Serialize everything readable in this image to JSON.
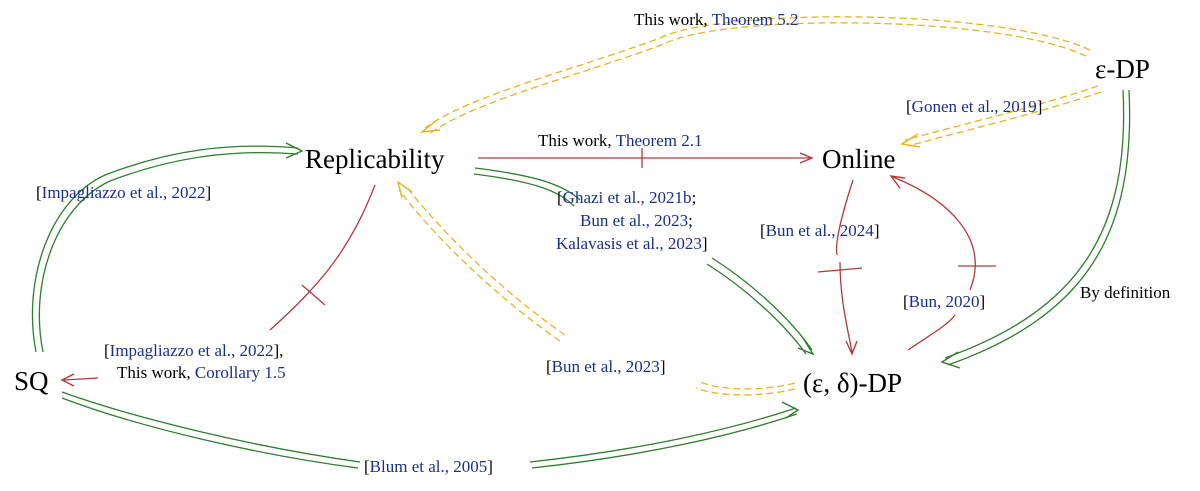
{
  "nodes": {
    "replicability": "Replicability",
    "online": "Online",
    "eps_dp": "ε-DP",
    "sq": "SQ",
    "eps_delta_dp": "(ε, δ)-DP"
  },
  "labels": {
    "theorem52": {
      "plain": "This work, ",
      "cite": "Theorem 5.2"
    },
    "gonen": {
      "open": "[",
      "cite": "Gonen et al., 2019",
      "close": "]"
    },
    "theorem21": {
      "plain": "This work, ",
      "cite": "Theorem 2.1"
    },
    "impagliazzo_top": {
      "open": "[",
      "cite": "Impagliazzo et al., 2022",
      "close": "]"
    },
    "ghazi_line1": {
      "open": "[",
      "cite": "Ghazi et al., 2021b",
      "close": ";"
    },
    "ghazi_line2": {
      "cite": "Bun et al., 2023",
      "close": ";"
    },
    "ghazi_line3": {
      "cite": "Kalavasis et al., 2023",
      "close": "]"
    },
    "bun2024": {
      "open": "[",
      "cite": "Bun et al., 2024",
      "close": "]"
    },
    "by_definition": "By definition",
    "bun2020": {
      "open": "[",
      "cite": "Bun, 2020",
      "close": "]"
    },
    "impagliazzo_bottom_line1": {
      "open": "[",
      "cite": "Impagliazzo et al., 2022",
      "close": "],"
    },
    "impagliazzo_bottom_line2": {
      "plain": "This work, ",
      "cite": "Corollary 1.5"
    },
    "bun2023": {
      "open": "[",
      "cite": "Bun et al., 2023",
      "close": "]"
    },
    "blum": {
      "open": "[",
      "cite": "Blum et al., 2005",
      "close": "]"
    }
  },
  "colors": {
    "green": "#2e7d2e",
    "red": "#b33a3a",
    "yellow": "#e6b422",
    "citation": "#1a2f8a"
  }
}
